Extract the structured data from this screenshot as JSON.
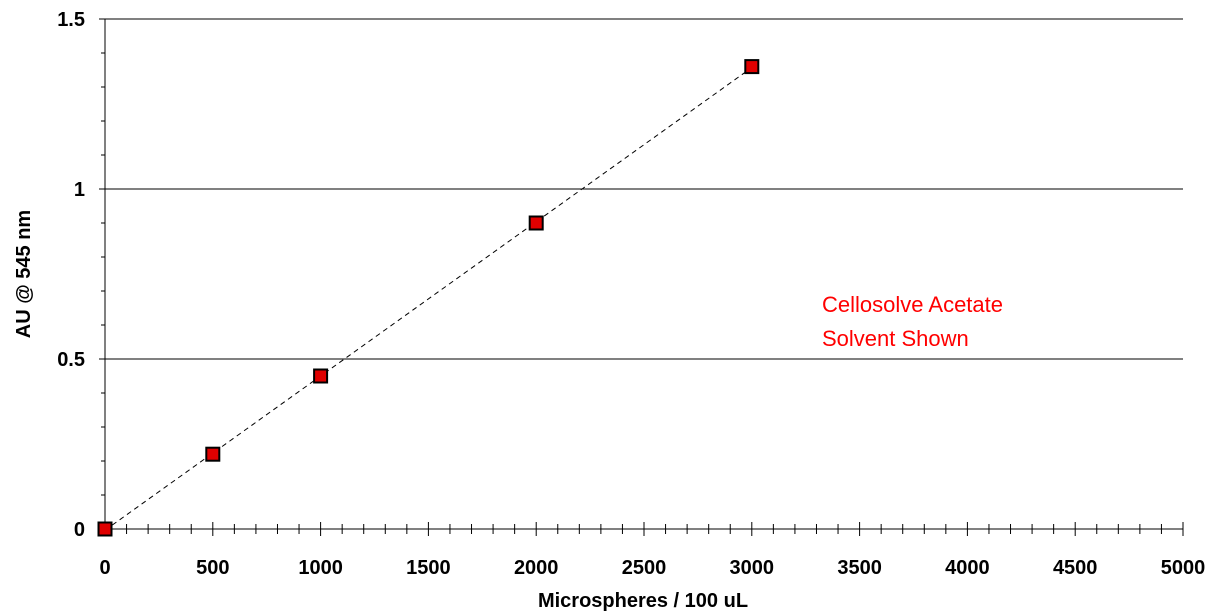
{
  "chart_data": {
    "type": "scatter",
    "xlabel": "Microspheres / 100 uL",
    "ylabel": "AU @ 545 nm",
    "xlim": [
      0,
      5000
    ],
    "ylim": [
      0,
      1.5
    ],
    "x_ticks": [
      "0",
      "500",
      "1000",
      "1500",
      "2000",
      "2500",
      "3000",
      "3500",
      "4000",
      "4500",
      "5000"
    ],
    "y_ticks": [
      "0",
      "0.5",
      "1",
      "1.5"
    ],
    "grid": "horizontal major gridlines",
    "series": [
      {
        "x": [
          0,
          500,
          1000,
          2000,
          3000
        ],
        "y": [
          0.0,
          0.22,
          0.45,
          0.9,
          1.36
        ],
        "marker": "square",
        "color": "#e00000",
        "trendline": "linear, dashed"
      }
    ],
    "annotation": {
      "line1": "Cellosolve Acetate",
      "line2": "Solvent Shown",
      "color": "#ff0000"
    }
  }
}
